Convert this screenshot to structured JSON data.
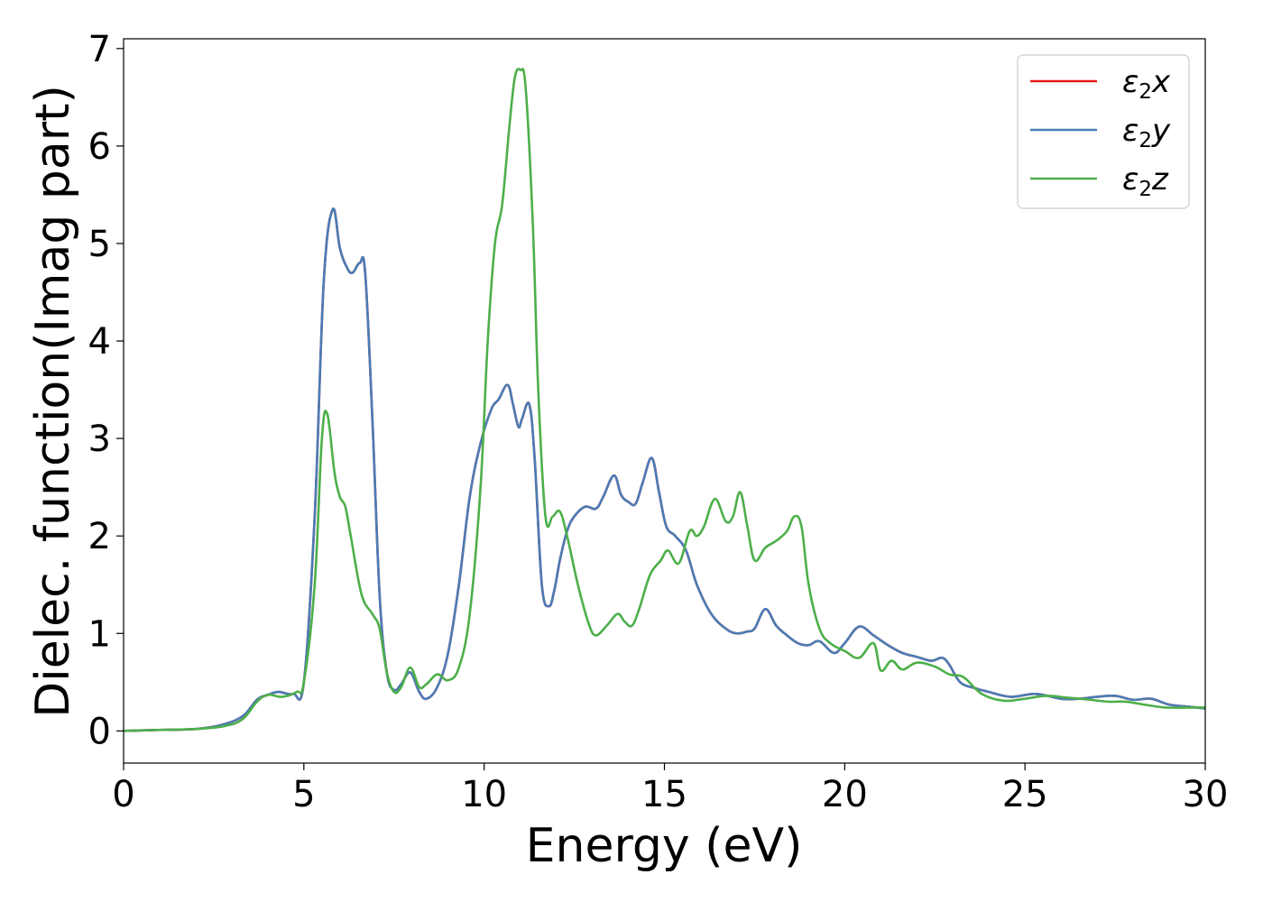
{
  "chart_data": {
    "type": "line",
    "xlabel": "Energy (eV)",
    "ylabel": "Dielec. function(Imag part)",
    "xlim": [
      0,
      30
    ],
    "ylim": [
      -0.33,
      7.1
    ],
    "xticks": [
      "0",
      "5",
      "10",
      "15",
      "20",
      "25",
      "30"
    ],
    "yticks": [
      "0",
      "1",
      "2",
      "3",
      "4",
      "5",
      "6",
      "7"
    ],
    "grid": false,
    "legend_position": "top-right",
    "series": [
      {
        "name": "ε2x",
        "legend": {
          "base": "ε",
          "sub": "2",
          "var": "x"
        },
        "color": "#e41a1c",
        "x": [
          0,
          1,
          2,
          2.7,
          3.3,
          3.7,
          4.0,
          4.3,
          4.7,
          5.0,
          5.3,
          5.55,
          5.8,
          6.0,
          6.2,
          6.35,
          6.55,
          6.7,
          6.9,
          7.1,
          7.3,
          7.5,
          7.7,
          7.95,
          8.2,
          8.4,
          8.7,
          9.0,
          9.3,
          9.6,
          9.9,
          10.2,
          10.4,
          10.65,
          10.8,
          10.95,
          11.05,
          11.25,
          11.4,
          11.6,
          11.8,
          11.95,
          12.1,
          12.3,
          12.5,
          12.8,
          13.1,
          13.3,
          13.6,
          13.8,
          14.0,
          14.2,
          14.4,
          14.65,
          14.85,
          15.05,
          15.3,
          15.6,
          15.9,
          16.3,
          16.7,
          17.0,
          17.3,
          17.5,
          17.8,
          18.1,
          18.4,
          18.7,
          19.0,
          19.3,
          19.7,
          20.0,
          20.4,
          20.8,
          21.2,
          21.6,
          22.0,
          22.4,
          22.7,
          22.9,
          23.2,
          23.6,
          24.0,
          24.6,
          25.3,
          26.0,
          26.5,
          27.0,
          27.5,
          28.0,
          28.5,
          29.0,
          29.5,
          30.0
        ],
        "y": [
          0,
          0.01,
          0.02,
          0.06,
          0.15,
          0.32,
          0.37,
          0.4,
          0.38,
          0.5,
          2.2,
          4.6,
          5.35,
          4.95,
          4.75,
          4.7,
          4.8,
          4.7,
          3.2,
          1.4,
          0.6,
          0.42,
          0.48,
          0.6,
          0.4,
          0.33,
          0.45,
          0.8,
          1.5,
          2.4,
          2.95,
          3.3,
          3.4,
          3.55,
          3.35,
          3.12,
          3.2,
          3.35,
          2.8,
          1.5,
          1.28,
          1.45,
          1.75,
          2.05,
          2.2,
          2.3,
          2.28,
          2.4,
          2.62,
          2.42,
          2.35,
          2.33,
          2.55,
          2.8,
          2.45,
          2.1,
          2.0,
          1.85,
          1.5,
          1.2,
          1.05,
          1.0,
          1.02,
          1.05,
          1.25,
          1.08,
          0.98,
          0.9,
          0.88,
          0.92,
          0.8,
          0.9,
          1.07,
          0.98,
          0.88,
          0.8,
          0.76,
          0.72,
          0.75,
          0.68,
          0.5,
          0.44,
          0.4,
          0.35,
          0.38,
          0.33,
          0.33,
          0.35,
          0.36,
          0.32,
          0.33,
          0.27,
          0.25,
          0.23
        ]
      },
      {
        "name": "ε2y",
        "legend": {
          "base": "ε",
          "sub": "2",
          "var": "y"
        },
        "color": "#4a7cb5",
        "x": [
          0,
          1,
          2,
          2.7,
          3.3,
          3.7,
          4.0,
          4.3,
          4.7,
          5.0,
          5.3,
          5.55,
          5.8,
          6.0,
          6.2,
          6.35,
          6.55,
          6.7,
          6.9,
          7.1,
          7.3,
          7.5,
          7.7,
          7.95,
          8.2,
          8.4,
          8.7,
          9.0,
          9.3,
          9.6,
          9.9,
          10.2,
          10.4,
          10.65,
          10.8,
          10.95,
          11.05,
          11.25,
          11.4,
          11.6,
          11.8,
          11.95,
          12.1,
          12.3,
          12.5,
          12.8,
          13.1,
          13.3,
          13.6,
          13.8,
          14.0,
          14.2,
          14.4,
          14.65,
          14.85,
          15.05,
          15.3,
          15.6,
          15.9,
          16.3,
          16.7,
          17.0,
          17.3,
          17.5,
          17.8,
          18.1,
          18.4,
          18.7,
          19.0,
          19.3,
          19.7,
          20.0,
          20.4,
          20.8,
          21.2,
          21.6,
          22.0,
          22.4,
          22.7,
          22.9,
          23.2,
          23.6,
          24.0,
          24.6,
          25.3,
          26.0,
          26.5,
          27.0,
          27.5,
          28.0,
          28.5,
          29.0,
          29.5,
          30.0
        ],
        "y": [
          0,
          0.01,
          0.02,
          0.06,
          0.15,
          0.32,
          0.37,
          0.4,
          0.38,
          0.5,
          2.2,
          4.6,
          5.35,
          4.95,
          4.75,
          4.7,
          4.8,
          4.7,
          3.2,
          1.4,
          0.6,
          0.42,
          0.48,
          0.6,
          0.4,
          0.33,
          0.45,
          0.8,
          1.5,
          2.4,
          2.95,
          3.3,
          3.4,
          3.55,
          3.35,
          3.12,
          3.2,
          3.35,
          2.8,
          1.5,
          1.28,
          1.45,
          1.75,
          2.05,
          2.2,
          2.3,
          2.28,
          2.4,
          2.62,
          2.42,
          2.35,
          2.33,
          2.55,
          2.8,
          2.45,
          2.1,
          2.0,
          1.85,
          1.5,
          1.2,
          1.05,
          1.0,
          1.02,
          1.05,
          1.25,
          1.08,
          0.98,
          0.9,
          0.88,
          0.92,
          0.8,
          0.9,
          1.07,
          0.98,
          0.88,
          0.8,
          0.76,
          0.72,
          0.75,
          0.68,
          0.5,
          0.44,
          0.4,
          0.35,
          0.38,
          0.33,
          0.33,
          0.35,
          0.36,
          0.32,
          0.33,
          0.27,
          0.25,
          0.23
        ]
      },
      {
        "name": "ε2z",
        "legend": {
          "base": "ε",
          "sub": "2",
          "var": "z"
        },
        "color": "#4daf4a",
        "x": [
          0,
          1,
          2,
          2.8,
          3.3,
          3.7,
          4.0,
          4.4,
          4.8,
          5.0,
          5.3,
          5.5,
          5.65,
          5.85,
          6.0,
          6.15,
          6.3,
          6.6,
          6.9,
          7.1,
          7.3,
          7.5,
          7.7,
          7.95,
          8.2,
          8.4,
          8.7,
          9.0,
          9.3,
          9.6,
          9.9,
          10.1,
          10.3,
          10.5,
          10.7,
          10.85,
          11.0,
          11.15,
          11.35,
          11.5,
          11.7,
          11.9,
          12.1,
          12.3,
          12.6,
          12.9,
          13.1,
          13.4,
          13.7,
          13.9,
          14.1,
          14.3,
          14.6,
          14.9,
          15.1,
          15.4,
          15.7,
          15.9,
          16.1,
          16.4,
          16.7,
          16.9,
          17.1,
          17.3,
          17.5,
          17.8,
          18.1,
          18.4,
          18.6,
          18.8,
          19.0,
          19.3,
          19.6,
          20.0,
          20.4,
          20.8,
          21.0,
          21.3,
          21.6,
          22.0,
          22.5,
          22.9,
          23.3,
          23.8,
          24.4,
          25.0,
          25.6,
          26.2,
          26.8,
          27.3,
          27.8,
          28.3,
          28.9,
          29.5,
          30.0
        ],
        "y": [
          0,
          0.01,
          0.02,
          0.05,
          0.12,
          0.3,
          0.37,
          0.35,
          0.4,
          0.5,
          1.5,
          3.0,
          3.25,
          2.65,
          2.4,
          2.3,
          2.0,
          1.4,
          1.2,
          1.05,
          0.6,
          0.4,
          0.45,
          0.65,
          0.45,
          0.48,
          0.58,
          0.52,
          0.65,
          1.2,
          2.5,
          4.0,
          5.0,
          5.4,
          6.2,
          6.7,
          6.78,
          6.6,
          5.2,
          3.5,
          2.2,
          2.2,
          2.25,
          2.0,
          1.5,
          1.1,
          0.98,
          1.08,
          1.2,
          1.12,
          1.08,
          1.25,
          1.6,
          1.75,
          1.85,
          1.72,
          2.05,
          2.0,
          2.1,
          2.38,
          2.15,
          2.2,
          2.45,
          2.1,
          1.75,
          1.88,
          1.95,
          2.05,
          2.2,
          2.1,
          1.5,
          1.05,
          0.9,
          0.82,
          0.75,
          0.9,
          0.62,
          0.72,
          0.63,
          0.7,
          0.66,
          0.58,
          0.55,
          0.38,
          0.31,
          0.33,
          0.36,
          0.34,
          0.32,
          0.3,
          0.3,
          0.27,
          0.24,
          0.24,
          0.24
        ]
      }
    ]
  }
}
